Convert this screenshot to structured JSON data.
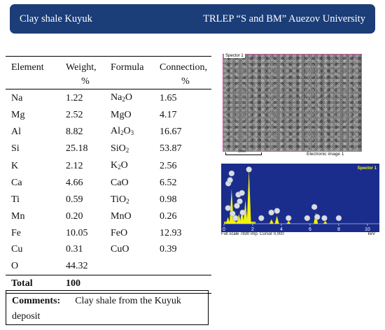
{
  "header": {
    "left": "Clay shale Kuyuk",
    "right": "TRLEP “S and BM” Auezov University"
  },
  "table": {
    "headers": [
      {
        "line1": "Element",
        "line2": ""
      },
      {
        "line1": "Weight,",
        "line2": "%"
      },
      {
        "line1": "Formula",
        "line2": ""
      },
      {
        "line1": "Connection,",
        "line2": "%"
      }
    ],
    "rows": [
      {
        "element": "Na",
        "weight": "1.22",
        "formula": [
          "Na",
          "2",
          "O"
        ],
        "connection": "1.65"
      },
      {
        "element": "Mg",
        "weight": "2.52",
        "formula": [
          "MgO"
        ],
        "connection": "4.17"
      },
      {
        "element": "Al",
        "weight": "8.82",
        "formula": [
          "Al",
          "2",
          "O",
          "3"
        ],
        "connection": "16.67"
      },
      {
        "element": "Si",
        "weight": "25.18",
        "formula": [
          "SiO",
          "2"
        ],
        "connection": "53.87"
      },
      {
        "element": "K",
        "weight": "2.12",
        "formula": [
          "K",
          "2",
          "O"
        ],
        "connection": "2.56"
      },
      {
        "element": "Ca",
        "weight": "4.66",
        "formula": [
          "CaO"
        ],
        "connection": "6.52"
      },
      {
        "element": "Ti",
        "weight": "0.59",
        "formula": [
          "TiO",
          "2"
        ],
        "connection": "0.98"
      },
      {
        "element": "Mn",
        "weight": "0.20",
        "formula": [
          "MnO"
        ],
        "connection": "0.26"
      },
      {
        "element": "Fe",
        "weight": "10.05",
        "formula": [
          "FeO"
        ],
        "connection": "12.93"
      },
      {
        "element": "Cu",
        "weight": "0.31",
        "formula": [
          "CuO"
        ],
        "connection": "0.39"
      },
      {
        "element": "O",
        "weight": "44.32",
        "formula": [
          ""
        ],
        "connection": ""
      }
    ],
    "total": {
      "label": "Total",
      "value": "100"
    }
  },
  "comments": {
    "label": "Comments:",
    "text": "Clay shale from the Kuyuk deposit"
  },
  "micrograph": {
    "tag": "Spector 1",
    "scale": "1mm",
    "caption": "Electronic image 1"
  },
  "spectrum": {
    "tag": "Spector 1",
    "footer": "Full scale 7830 imp. Cursor 0,000",
    "unit": "keV",
    "x_ticks": [
      "0",
      "2",
      "4",
      "6",
      "8",
      "10"
    ],
    "peaks": [
      {
        "kev": 0.28,
        "h": 0.12
      },
      {
        "kev": 0.53,
        "h": 0.62
      },
      {
        "kev": 0.7,
        "h": 0.08
      },
      {
        "kev": 1.04,
        "h": 0.18
      },
      {
        "kev": 1.25,
        "h": 0.26
      },
      {
        "kev": 1.49,
        "h": 0.42
      },
      {
        "kev": 1.74,
        "h": 0.98
      },
      {
        "kev": 3.31,
        "h": 0.08
      },
      {
        "kev": 3.69,
        "h": 0.14
      },
      {
        "kev": 4.51,
        "h": 0.05
      },
      {
        "kev": 6.4,
        "h": 0.2
      },
      {
        "kev": 7.06,
        "h": 0.05
      }
    ],
    "bubbles": [
      {
        "kev": 0.28,
        "h": 0.28
      },
      {
        "kev": 0.3,
        "h": 0.72
      },
      {
        "kev": 0.42,
        "h": 0.78
      },
      {
        "kev": 0.53,
        "h": 0.9
      },
      {
        "kev": 1.74,
        "h": 0.97
      },
      {
        "kev": 1.0,
        "h": 0.52
      },
      {
        "kev": 1.1,
        "h": 0.4
      },
      {
        "kev": 1.25,
        "h": 0.55
      },
      {
        "kev": 0.9,
        "h": 0.32
      },
      {
        "kev": 0.6,
        "h": 0.18
      },
      {
        "kev": 0.8,
        "h": 0.1
      },
      {
        "kev": 1.3,
        "h": 0.2
      },
      {
        "kev": 3.3,
        "h": 0.2
      },
      {
        "kev": 3.7,
        "h": 0.23
      },
      {
        "kev": 4.5,
        "h": 0.1
      },
      {
        "kev": 6.3,
        "h": 0.3
      },
      {
        "kev": 6.5,
        "h": 0.12
      },
      {
        "kev": 7.0,
        "h": 0.1
      },
      {
        "kev": 5.8,
        "h": 0.1
      },
      {
        "kev": 8.0,
        "h": 0.1
      },
      {
        "kev": 2.6,
        "h": 0.1
      }
    ],
    "colors": {
      "background": "#1a2d8c",
      "peak": "#f3f30a",
      "bubble": "#d9dde6"
    }
  }
}
